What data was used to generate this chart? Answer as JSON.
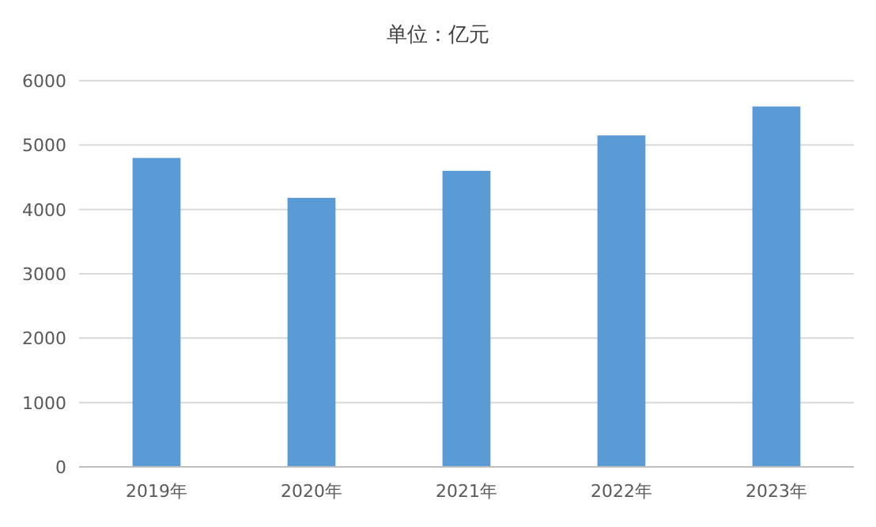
{
  "chart_data": {
    "type": "bar",
    "title": "单位：亿元",
    "categories": [
      "2019年",
      "2020年",
      "2021年",
      "2022年",
      "2023年"
    ],
    "values": [
      4800,
      4180,
      4600,
      5150,
      5600
    ],
    "color": "#5b9bd5",
    "ylim": [
      0,
      6000
    ],
    "yticks": [
      0,
      1000,
      2000,
      3000,
      4000,
      5000,
      6000
    ],
    "grid": "y"
  }
}
